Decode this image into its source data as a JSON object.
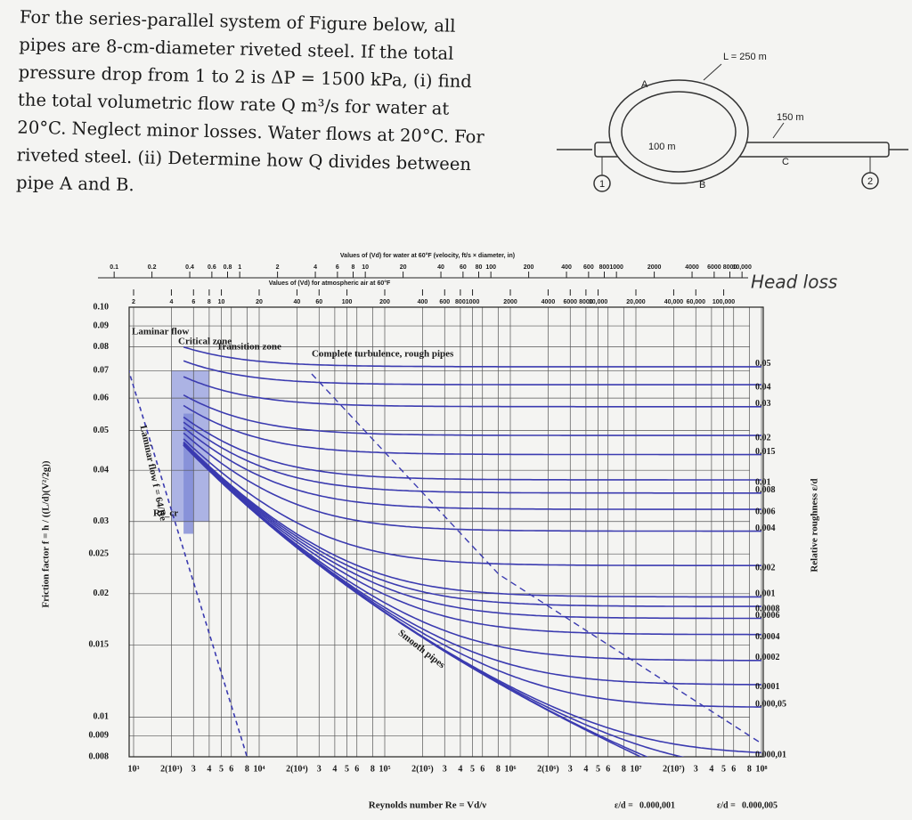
{
  "problem": {
    "lines": [
      "For the series-parallel system of Figure below, all",
      "pipes are 8-cm-diameter riveted steel. If the total",
      "pressure drop from 1 to 2 is ΔP = 1500 kPa, (i) find",
      "the total volumetric flow rate Q m³/s for water at",
      "20°C. Neglect minor losses. Water flows at 20°C. For",
      "riveted steel.  (ii) Determine how Q divides between",
      "pipe A and B."
    ]
  },
  "diagram": {
    "length_A": "L = 250 m",
    "label_A": "A",
    "length_B": "100 m",
    "label_B": "B",
    "length_C": "150 m",
    "label_C": "C",
    "node_1": "1",
    "node_2": "2"
  },
  "annotations": {
    "head_loss": "Head loss"
  },
  "moody": {
    "water_title": "Values of (Vd) for water at 60°F (velocity, ft/s × diameter, in)",
    "water_scale": [
      {
        "value": 0.1,
        "label": "0.1"
      },
      0.2,
      0.4,
      0.6,
      0.8,
      1,
      2,
      4,
      6,
      8,
      10,
      20,
      40,
      60,
      80,
      100,
      200,
      400,
      600,
      800,
      1000,
      2000,
      4000,
      6000,
      8000,
      {
        "value": 10000,
        "label": "10,000"
      }
    ],
    "air_title": "Values of (Vd) for atmospheric air at 60°F",
    "air_scale": [
      2,
      4,
      6,
      8,
      10,
      20,
      40,
      60,
      100,
      200,
      400,
      600,
      800,
      1000,
      2000,
      4000,
      6000,
      8000,
      {
        "value": 10000,
        "label": "10,000"
      },
      {
        "value": 20000,
        "label": "20,000"
      },
      {
        "value": 40000,
        "label": "40,000"
      },
      {
        "value": 60000,
        "label": "60,000"
      },
      {
        "value": 100000,
        "label": "100,000"
      }
    ],
    "zones": {
      "laminar": "Laminar flow",
      "critical": "Critical zone",
      "transition": "Transition zone",
      "turbulence": "Complete turbulence, rough pipes"
    },
    "y_axis_label": "Friction factor f = h / ((L/d)(V²/2g))",
    "right_axis_label": "Relative roughness ε/d",
    "x_axis_label": "Reynolds number Re = Vd/ν",
    "laminar_label": "Laminar flow f = 64/Re",
    "recr_label": "Re_cr",
    "smooth_label": "Smooth pipes",
    "yticks": [
      {
        "value": 0.1,
        "label": "0.10"
      },
      0.09,
      0.08,
      0.07,
      0.06,
      0.05,
      0.04,
      0.03,
      0.025,
      0.02,
      0.015,
      0.01,
      0.009,
      0.008
    ],
    "roughness": [
      0.05,
      0.04,
      0.03,
      0.02,
      0.015,
      0.01,
      0.008,
      0.006,
      0.004,
      0.002,
      0.001,
      0.0008,
      0.0006,
      0.0004,
      0.0002,
      0.0001,
      {
        "value": 5e-05,
        "label": "0.000,05"
      },
      {
        "value": 1e-05,
        "label": "0.000,01"
      }
    ],
    "roughness_symbol": "ε/d =",
    "roughness_bottom": [
      {
        "value": 1e-06,
        "label": "0.000,001"
      },
      {
        "value": 5e-06,
        "label": "0.000,005"
      }
    ],
    "xticks": [
      {
        "value": 1000,
        "label": "10³"
      },
      {
        "value": 2000,
        "label": "2(10³)"
      },
      {
        "value": 3000,
        "label": "3"
      },
      {
        "value": 4000,
        "label": "4"
      },
      {
        "value": 5000,
        "label": "5"
      },
      {
        "value": 6000,
        "label": "6"
      },
      {
        "value": 8000,
        "label": "8"
      },
      {
        "value": 10000,
        "label": "10⁴"
      },
      {
        "value": 20000,
        "label": "2(10⁴)"
      },
      {
        "value": 30000,
        "label": "3"
      },
      {
        "value": 40000,
        "label": "4"
      },
      {
        "value": 50000,
        "label": "5"
      },
      {
        "value": 60000,
        "label": "6"
      },
      {
        "value": 80000,
        "label": "8"
      },
      {
        "value": 100000,
        "label": "10⁵"
      },
      {
        "value": 200000,
        "label": "2(10⁵)"
      },
      {
        "value": 300000,
        "label": "3"
      },
      {
        "value": 400000,
        "label": "4"
      },
      {
        "value": 500000,
        "label": "5"
      },
      {
        "value": 600000,
        "label": "6"
      },
      {
        "value": 800000,
        "label": "8"
      },
      {
        "value": 1000000,
        "label": "10⁶"
      },
      {
        "value": 2000000,
        "label": "2(10⁶)"
      },
      {
        "value": 3000000,
        "label": "3"
      },
      {
        "value": 4000000,
        "label": "4"
      },
      {
        "value": 5000000,
        "label": "5"
      },
      {
        "value": 6000000,
        "label": "6"
      },
      {
        "value": 8000000,
        "label": "8"
      },
      {
        "value": 10000000,
        "label": "10⁷"
      },
      {
        "value": 20000000,
        "label": "2(10⁷)"
      },
      {
        "value": 30000000,
        "label": "3"
      },
      {
        "value": 40000000,
        "label": "4"
      },
      {
        "value": 50000000,
        "label": "5"
      },
      {
        "value": 60000000,
        "label": "6"
      },
      {
        "value": 80000000,
        "label": "8"
      },
      {
        "value": 100000000,
        "label": "10⁸"
      }
    ]
  }
}
